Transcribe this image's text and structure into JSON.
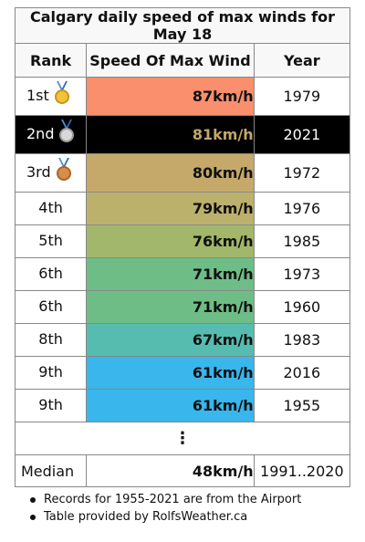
{
  "title": "Calgary daily speed of max winds for May 18",
  "headers": {
    "rank": "Rank",
    "speed": "Speed Of Max Wind",
    "year": "Year"
  },
  "rows": [
    {
      "rank": "1st",
      "speed": "87km/h",
      "year": "1979",
      "color": "#f98f6d",
      "medal": "gold-medal-icon"
    },
    {
      "rank": "2nd",
      "speed": "81km/h",
      "year": "2021",
      "color": "#000000",
      "medal": "silver-medal-icon"
    },
    {
      "rank": "3rd",
      "speed": "80km/h",
      "year": "1972",
      "color": "#c4a96a",
      "medal": "bronze-medal-icon"
    },
    {
      "rank": "4th",
      "speed": "79km/h",
      "year": "1976",
      "color": "#bcb16c"
    },
    {
      "rank": "5th",
      "speed": "76km/h",
      "year": "1985",
      "color": "#a2b76c"
    },
    {
      "rank": "6th",
      "speed": "71km/h",
      "year": "1973",
      "color": "#6fbd86"
    },
    {
      "rank": "6th",
      "speed": "71km/h",
      "year": "1960",
      "color": "#6fbd86"
    },
    {
      "rank": "8th",
      "speed": "67km/h",
      "year": "1983",
      "color": "#56bcb0"
    },
    {
      "rank": "9th",
      "speed": "61km/h",
      "year": "2016",
      "color": "#39b6ec"
    },
    {
      "rank": "9th",
      "speed": "61km/h",
      "year": "1955",
      "color": "#39b6ec"
    }
  ],
  "ellipsis": "⋮",
  "median": {
    "label": "Median",
    "speed": "48km/h",
    "years": "1991..2020"
  },
  "notes": [
    "Records for 1955-2021 are from the Airport",
    "Table provided by RolfsWeather.ca"
  ]
}
